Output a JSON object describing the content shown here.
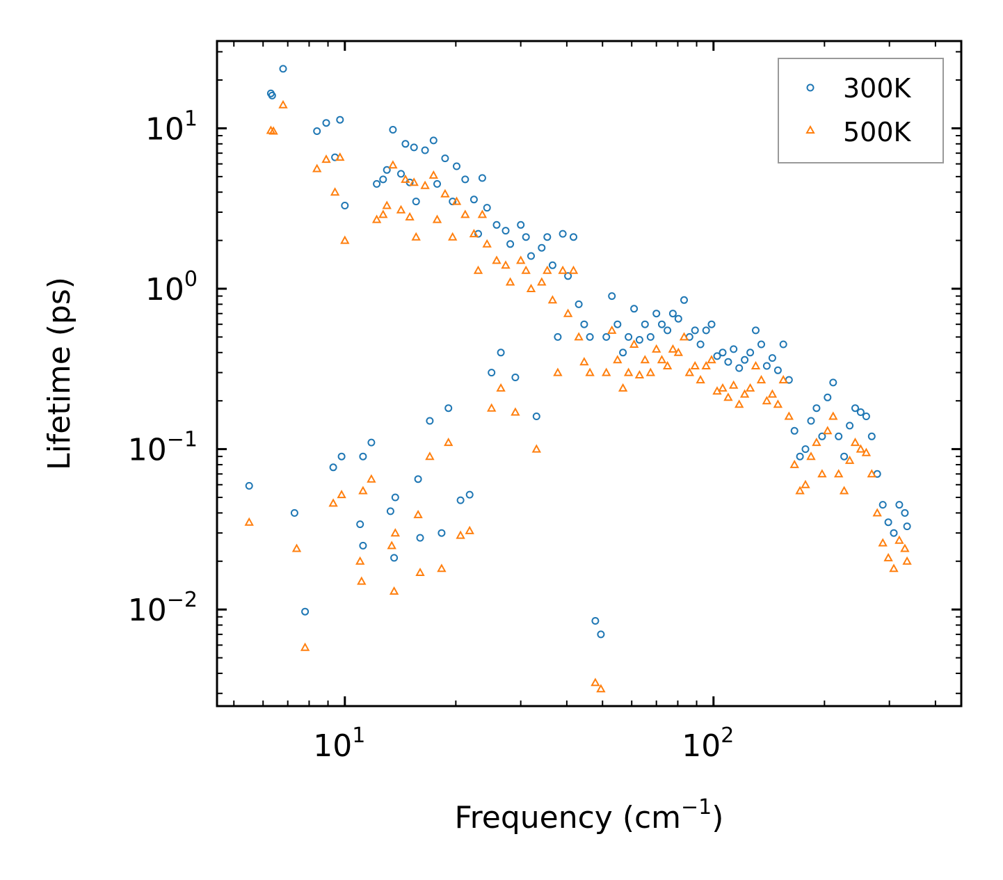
{
  "chart_data": {
    "type": "scatter",
    "xscale": "log",
    "yscale": "log",
    "xlim": [
      4.5,
      470
    ],
    "ylim": [
      0.0025,
      35
    ],
    "xlabel": {
      "base": "Frequency (cm",
      "sup": "−1",
      "end": ")"
    },
    "ylabel": "Lifetime (ps)",
    "xticks": [
      {
        "value": 10,
        "base": "10",
        "exp": "1"
      },
      {
        "value": 100,
        "base": "10",
        "exp": "2"
      }
    ],
    "yticks": [
      {
        "value": 0.01,
        "base": "10",
        "exp": "−2"
      },
      {
        "value": 0.1,
        "base": "10",
        "exp": "−1"
      },
      {
        "value": 1,
        "base": "10",
        "exp": "0"
      },
      {
        "value": 10,
        "base": "10",
        "exp": "1"
      }
    ],
    "legend": {
      "position": "top-right"
    },
    "series": [
      {
        "name": "300K",
        "marker": "circle",
        "color": "#1f77b4",
        "points": [
          [
            5.5,
            0.059
          ],
          [
            6.3,
            16.5
          ],
          [
            6.35,
            16
          ],
          [
            6.8,
            23.5
          ],
          [
            7.3,
            0.04
          ],
          [
            7.8,
            0.0097
          ],
          [
            8.4,
            9.6
          ],
          [
            8.9,
            10.8
          ],
          [
            9.3,
            0.077
          ],
          [
            9.4,
            6.6
          ],
          [
            9.7,
            11.3
          ],
          [
            9.8,
            0.09
          ],
          [
            10.0,
            3.3
          ],
          [
            11.0,
            0.034
          ],
          [
            11.2,
            0.025
          ],
          [
            11.2,
            0.09
          ],
          [
            11.8,
            0.11
          ],
          [
            12.2,
            4.5
          ],
          [
            12.7,
            4.8
          ],
          [
            13.0,
            5.5
          ],
          [
            13.3,
            0.041
          ],
          [
            13.5,
            9.8
          ],
          [
            13.6,
            0.021
          ],
          [
            13.7,
            0.05
          ],
          [
            14.2,
            5.2
          ],
          [
            14.6,
            8
          ],
          [
            15.0,
            4.6
          ],
          [
            15.4,
            7.6
          ],
          [
            15.6,
            3.5
          ],
          [
            15.8,
            0.065
          ],
          [
            16.0,
            0.028
          ],
          [
            16.5,
            7.3
          ],
          [
            17.0,
            0.15
          ],
          [
            17.4,
            8.4
          ],
          [
            17.8,
            4.5
          ],
          [
            18.3,
            0.03
          ],
          [
            18.7,
            6.5
          ],
          [
            19.1,
            0.18
          ],
          [
            19.6,
            3.5
          ],
          [
            20.1,
            5.8
          ],
          [
            20.6,
            0.048
          ],
          [
            21.2,
            4.8
          ],
          [
            21.8,
            0.052
          ],
          [
            22.4,
            3.6
          ],
          [
            23.0,
            2.2
          ],
          [
            23.6,
            4.9
          ],
          [
            24.3,
            3.2
          ],
          [
            25.0,
            0.3
          ],
          [
            25.8,
            2.5
          ],
          [
            26.5,
            0.4
          ],
          [
            27.3,
            2.3
          ],
          [
            28.1,
            1.9
          ],
          [
            29.0,
            0.28
          ],
          [
            30.0,
            2.5
          ],
          [
            31.0,
            2.1
          ],
          [
            32.0,
            1.6
          ],
          [
            33.1,
            0.16
          ],
          [
            34.2,
            1.8
          ],
          [
            35.4,
            2.1
          ],
          [
            36.6,
            1.4
          ],
          [
            37.8,
            0.5
          ],
          [
            39.0,
            2.2
          ],
          [
            40.3,
            1.2
          ],
          [
            41.7,
            2.1
          ],
          [
            43.1,
            0.8
          ],
          [
            44.6,
            0.6
          ],
          [
            46.2,
            0.5
          ],
          [
            47.8,
            0.0085
          ],
          [
            49.5,
            0.007
          ],
          [
            51.2,
            0.5
          ],
          [
            53.0,
            0.9
          ],
          [
            54.9,
            0.6
          ],
          [
            56.8,
            0.4
          ],
          [
            58.8,
            0.5
          ],
          [
            60.9,
            0.75
          ],
          [
            63.0,
            0.48
          ],
          [
            65.2,
            0.6
          ],
          [
            67.5,
            0.5
          ],
          [
            70.0,
            0.7
          ],
          [
            72.4,
            0.6
          ],
          [
            75.0,
            0.55
          ],
          [
            77.6,
            0.7
          ],
          [
            80.3,
            0.65
          ],
          [
            83.2,
            0.85
          ],
          [
            86.1,
            0.5
          ],
          [
            89.1,
            0.55
          ],
          [
            92.2,
            0.45
          ],
          [
            95.5,
            0.55
          ],
          [
            98.8,
            0.6
          ],
          [
            102.3,
            0.38
          ],
          [
            105.9,
            0.4
          ],
          [
            109.6,
            0.35
          ],
          [
            113.4,
            0.42
          ],
          [
            117.4,
            0.32
          ],
          [
            121.5,
            0.36
          ],
          [
            125.8,
            0.4
          ],
          [
            130.2,
            0.55
          ],
          [
            134.8,
            0.45
          ],
          [
            139.5,
            0.33
          ],
          [
            144.4,
            0.37
          ],
          [
            149.5,
            0.31
          ],
          [
            154.7,
            0.45
          ],
          [
            160.2,
            0.27
          ],
          [
            165.8,
            0.13
          ],
          [
            171.6,
            0.09
          ],
          [
            177.6,
            0.1
          ],
          [
            183.9,
            0.15
          ],
          [
            190.3,
            0.18
          ],
          [
            197.0,
            0.12
          ],
          [
            203.9,
            0.21
          ],
          [
            211.1,
            0.26
          ],
          [
            218.5,
            0.12
          ],
          [
            226.1,
            0.09
          ],
          [
            234.1,
            0.14
          ],
          [
            242.3,
            0.18
          ],
          [
            250.8,
            0.17
          ],
          [
            259.6,
            0.16
          ],
          [
            268.7,
            0.12
          ],
          [
            278.1,
            0.07
          ],
          [
            287.9,
            0.045
          ],
          [
            298.0,
            0.035
          ],
          [
            308.4,
            0.03
          ],
          [
            319.2,
            0.045
          ],
          [
            330.4,
            0.04
          ],
          [
            335.0,
            0.033
          ]
        ]
      },
      {
        "name": "500K",
        "marker": "triangle",
        "color": "#ff7f0e",
        "points": [
          [
            5.5,
            0.035
          ],
          [
            6.3,
            9.7
          ],
          [
            6.4,
            9.6
          ],
          [
            6.8,
            14
          ],
          [
            7.4,
            0.024
          ],
          [
            7.8,
            0.0058
          ],
          [
            8.4,
            5.6
          ],
          [
            8.9,
            6.4
          ],
          [
            9.3,
            0.046
          ],
          [
            9.4,
            4
          ],
          [
            9.7,
            6.6
          ],
          [
            9.8,
            0.052
          ],
          [
            10.0,
            2
          ],
          [
            11.0,
            0.02
          ],
          [
            11.1,
            0.015
          ],
          [
            11.2,
            0.055
          ],
          [
            11.8,
            0.065
          ],
          [
            12.2,
            2.7
          ],
          [
            12.7,
            2.9
          ],
          [
            13.0,
            3.3
          ],
          [
            13.4,
            0.025
          ],
          [
            13.5,
            5.9
          ],
          [
            13.6,
            0.013
          ],
          [
            13.7,
            0.03
          ],
          [
            14.2,
            3.1
          ],
          [
            14.6,
            4.8
          ],
          [
            15.0,
            2.8
          ],
          [
            15.4,
            4.6
          ],
          [
            15.6,
            2.1
          ],
          [
            15.8,
            0.039
          ],
          [
            16.0,
            0.017
          ],
          [
            16.5,
            4.4
          ],
          [
            17.0,
            0.09
          ],
          [
            17.4,
            5.1
          ],
          [
            17.8,
            2.7
          ],
          [
            18.3,
            0.018
          ],
          [
            18.7,
            3.9
          ],
          [
            19.1,
            0.11
          ],
          [
            19.6,
            2.1
          ],
          [
            20.1,
            3.5
          ],
          [
            20.6,
            0.029
          ],
          [
            21.2,
            2.9
          ],
          [
            21.8,
            0.031
          ],
          [
            22.4,
            2.2
          ],
          [
            23.0,
            1.3
          ],
          [
            23.6,
            2.9
          ],
          [
            24.3,
            1.9
          ],
          [
            25.0,
            0.18
          ],
          [
            25.8,
            1.5
          ],
          [
            26.5,
            0.24
          ],
          [
            27.3,
            1.4
          ],
          [
            28.1,
            1.1
          ],
          [
            29.0,
            0.17
          ],
          [
            30.0,
            1.5
          ],
          [
            31.0,
            1.3
          ],
          [
            32.0,
            1.0
          ],
          [
            33.1,
            0.1
          ],
          [
            34.2,
            1.1
          ],
          [
            35.4,
            1.3
          ],
          [
            36.6,
            0.85
          ],
          [
            37.8,
            0.3
          ],
          [
            39.0,
            1.3
          ],
          [
            40.3,
            0.7
          ],
          [
            41.7,
            1.3
          ],
          [
            43.1,
            0.5
          ],
          [
            44.6,
            0.35
          ],
          [
            46.2,
            0.3
          ],
          [
            47.8,
            0.0035
          ],
          [
            49.5,
            0.0032
          ],
          [
            51.2,
            0.3
          ],
          [
            53.0,
            0.55
          ],
          [
            54.9,
            0.36
          ],
          [
            56.8,
            0.24
          ],
          [
            58.8,
            0.3
          ],
          [
            60.9,
            0.45
          ],
          [
            63.0,
            0.29
          ],
          [
            65.2,
            0.36
          ],
          [
            67.5,
            0.3
          ],
          [
            70.0,
            0.42
          ],
          [
            72.4,
            0.36
          ],
          [
            75.0,
            0.33
          ],
          [
            77.6,
            0.42
          ],
          [
            80.3,
            0.4
          ],
          [
            83.2,
            0.5
          ],
          [
            86.1,
            0.3
          ],
          [
            89.1,
            0.33
          ],
          [
            92.2,
            0.27
          ],
          [
            95.5,
            0.33
          ],
          [
            98.8,
            0.36
          ],
          [
            102.3,
            0.23
          ],
          [
            105.9,
            0.24
          ],
          [
            109.6,
            0.21
          ],
          [
            113.4,
            0.25
          ],
          [
            117.4,
            0.19
          ],
          [
            121.5,
            0.22
          ],
          [
            125.8,
            0.24
          ],
          [
            130.2,
            0.33
          ],
          [
            134.8,
            0.27
          ],
          [
            139.5,
            0.2
          ],
          [
            144.4,
            0.22
          ],
          [
            149.5,
            0.19
          ],
          [
            154.7,
            0.27
          ],
          [
            160.2,
            0.16
          ],
          [
            165.8,
            0.08
          ],
          [
            171.6,
            0.055
          ],
          [
            177.6,
            0.06
          ],
          [
            183.9,
            0.09
          ],
          [
            190.3,
            0.11
          ],
          [
            197.0,
            0.07
          ],
          [
            203.9,
            0.13
          ],
          [
            211.1,
            0.16
          ],
          [
            218.5,
            0.07
          ],
          [
            226.1,
            0.055
          ],
          [
            234.1,
            0.085
          ],
          [
            242.3,
            0.11
          ],
          [
            250.8,
            0.1
          ],
          [
            259.6,
            0.095
          ],
          [
            268.7,
            0.07
          ],
          [
            278.1,
            0.04
          ],
          [
            287.9,
            0.026
          ],
          [
            298.0,
            0.021
          ],
          [
            308.4,
            0.018
          ],
          [
            319.2,
            0.027
          ],
          [
            330.4,
            0.024
          ],
          [
            335.0,
            0.02
          ]
        ]
      }
    ]
  }
}
